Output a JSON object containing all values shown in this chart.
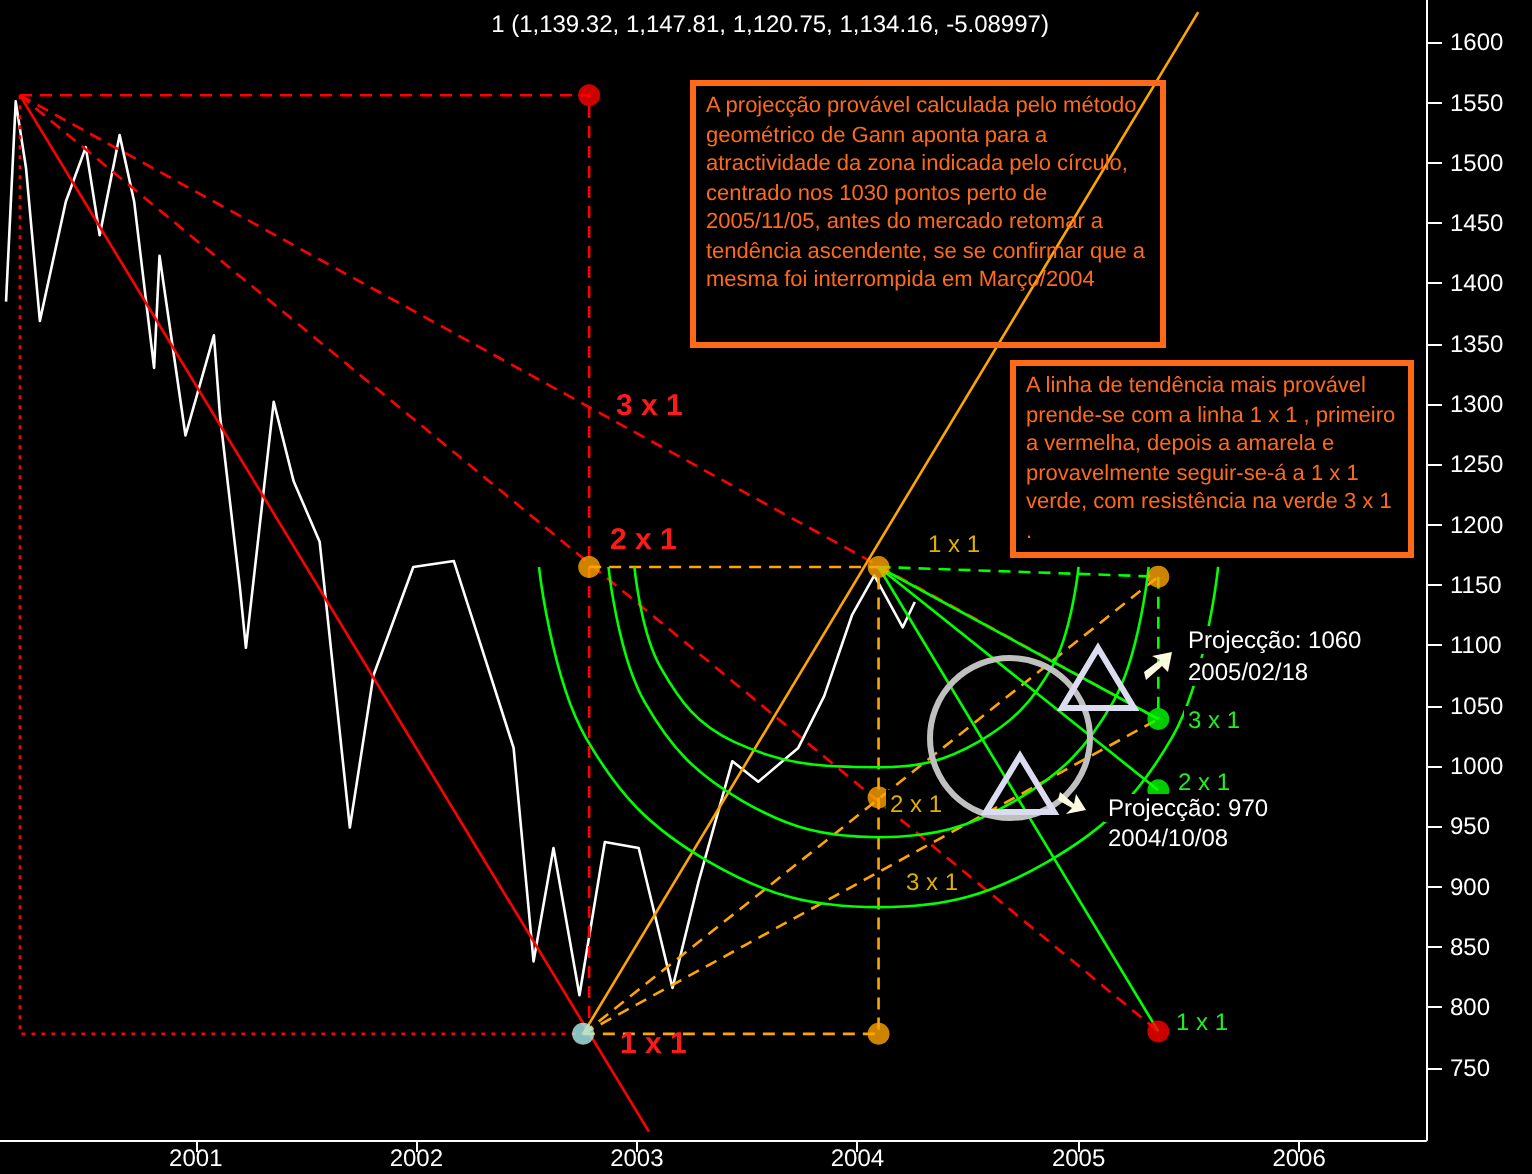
{
  "chart_data": {
    "type": "line",
    "title": "1 (1,139.32, 1,147.81, 1,120.75, 1,134.16, -5.08997)",
    "xlim": [
      "2000-02-12",
      "2006-07-30"
    ],
    "xticks": [
      "2001",
      "2002",
      "2003",
      "2004",
      "2005",
      "2006"
    ],
    "ylim": [
      690,
      1635
    ],
    "yticks": [
      750,
      800,
      850,
      900,
      950,
      1000,
      1050,
      1100,
      1150,
      1200,
      1250,
      1300,
      1350,
      1400,
      1450,
      1500,
      1550,
      1600
    ],
    "grid": false,
    "marker": "none",
    "line_style": "solid",
    "series": [
      {
        "color": "#ffffff",
        "x": [
          "2000-02-22",
          "2000-03-09",
          "2000-03-26",
          "2000-04-18",
          "2000-05-31",
          "2000-07-03",
          "2000-07-26",
          "2000-08-28",
          "2000-09-21",
          "2000-10-24",
          "2000-11-02",
          "2000-12-15",
          "2001-01-31",
          "2001-02-10",
          "2001-03-15",
          "2001-03-25",
          "2001-05-10",
          "2001-06-12",
          "2001-07-25",
          "2001-09-13",
          "2001-10-22",
          "2001-12-27",
          "2002-03-04",
          "2002-04-16",
          "2002-06-11",
          "2002-07-14",
          "2002-08-16",
          "2002-09-28",
          "2002-11-09",
          "2003-01-04",
          "2003-03-01",
          "2003-04-13",
          "2003-06-08",
          "2003-07-21",
          "2003-09-25",
          "2003-11-07",
          "2003-12-23",
          "2004-01-29",
          "2004-03-16",
          "2004-04-05"
        ],
        "values": [
          1385,
          1551,
          1496,
          1369,
          1468,
          1513,
          1440,
          1523,
          1468,
          1330,
          1423,
          1274,
          1357,
          1291,
          1148,
          1098,
          1302,
          1236,
          1186,
          949,
          1075,
          1165,
          1170,
          1103,
          1015,
          838,
          932,
          810,
          937,
          932,
          816,
          904,
          1004,
          987,
          1015,
          1058,
          1125,
          1158,
          1115,
          1136
        ]
      },
      {
        "color": "#ff0000",
        "x": [
          "2000-03-16",
          "2003-01-21"
        ],
        "values": [
          1556,
          697
        ]
      },
      {
        "type": "line",
        "color": "#ff0000",
        "line_style": "dashed",
        "x": [
          "2000-03-16",
          "2002-10-14",
          "2002-10-14"
        ],
        "values": [
          1556,
          1556,
          778
        ]
      },
      {
        "type": "line",
        "color": "#ff0000",
        "line_style": "dotted",
        "x": [
          "2000-03-16",
          "2000-03-16",
          "2002-10-04"
        ],
        "values": [
          1556,
          778,
          778
        ]
      },
      {
        "type": "line",
        "color": "#ff0000",
        "line_style": "dashed",
        "x": [
          "2000-03-16",
          "2005-05-13"
        ],
        "values": [
          1556,
          780
        ]
      },
      {
        "type": "line",
        "color": "#ff0000",
        "line_style": "dashed",
        "x": [
          "2000-03-16",
          "2005-05-13"
        ],
        "values": [
          1556,
          1039
        ]
      },
      {
        "color": "#ffa500",
        "x": [
          "2002-10-04",
          "2005-07-18"
        ],
        "values": [
          778,
          1625
        ]
      },
      {
        "type": "line",
        "color": "#ffa500",
        "line_style": "dashed",
        "x": [
          "2002-10-14",
          "2004-02-05",
          "2004-02-05",
          "2002-10-04"
        ],
        "values": [
          1165,
          1165,
          778,
          778
        ]
      },
      {
        "type": "line",
        "color": "#ffa500",
        "line_style": "dashed",
        "x": [
          "2002-10-04",
          "2005-05-13"
        ],
        "values": [
          778,
          1157
        ]
      },
      {
        "type": "line",
        "color": "#ffa500",
        "line_style": "dashed",
        "x": [
          "2002-10-04",
          "2005-05-13"
        ],
        "values": [
          778,
          1039
        ]
      },
      {
        "type": "line",
        "color": "#00ff00",
        "line_style": "dashed",
        "x": [
          "2004-02-05",
          "2005-05-13",
          "2005-05-13"
        ],
        "values": [
          1165,
          1157,
          1039
        ]
      },
      {
        "type": "line",
        "color": "#00ff00",
        "x": [
          "2004-02-05",
          "2005-05-13"
        ],
        "values": [
          1165,
          780
        ]
      },
      {
        "type": "line",
        "color": "#00ff00",
        "x": [
          "2004-02-05",
          "2005-05-13"
        ],
        "values": [
          1165,
          1039
        ]
      },
      {
        "type": "line",
        "color": "#00ff00",
        "x": [
          "2004-02-05",
          "2005-05-13"
        ],
        "values": [
          1165,
          980
        ]
      },
      {
        "type": "line",
        "color": "#00ff00",
        "x": [
          "2002-07-23",
          "2002-10-08",
          "2003-04-29",
          "2004-02-05",
          "2004-11-12",
          "2005-06-05",
          "2005-08-20"
        ],
        "values": [
          1165,
          1024,
          921,
          883,
          921,
          1024,
          1165
        ]
      },
      {
        "type": "line",
        "color": "#00ff00",
        "x": [
          "2002-11-15",
          "2003-01-14",
          "2003-06-25",
          "2004-02-05",
          "2004-09-17",
          "2005-02-27",
          "2005-04-27"
        ],
        "values": [
          1165,
          1053,
          971,
          941,
          971,
          1053,
          1165
        ]
      },
      {
        "type": "line",
        "color": "#00ff00",
        "x": [
          "2002-12-28",
          "2003-02-09",
          "2003-06-11",
          "2004-02-05",
          "2004-07-19",
          "2004-11-18",
          "2005-01-01"
        ],
        "values": [
          1165,
          1082,
          1020,
          999,
          1020,
          1082,
          1165
        ]
      },
      {
        "type": "scatter",
        "marker": "circle",
        "x": [
          "2002-10-14",
          "2005-05-13",
          "2002-10-14",
          "2004-02-05",
          "2004-02-05",
          "2004-02-05",
          "2005-05-13",
          "2002-10-04",
          "2005-05-13",
          "2005-05-13"
        ],
        "values": [
          1556,
          780,
          1165,
          1165,
          974,
          778,
          1157,
          778,
          1039,
          980
        ],
        "colors": [
          "#ff0000",
          "#ff0000",
          "#ffa500",
          "#ffa500",
          "#ffa500",
          "#ffa500",
          "#ffa500",
          "#aaf0f0",
          "#00ff00",
          "#00ff00"
        ]
      }
    ],
    "annotations": [
      "A projecção provável calculada pelo método geométrico de Gann aponta para a atractividade da zona indicada pelo círculo, centrado nos 1030 pontos perto de 2005/11/05, antes do mercado retomar a tendência ascendente, se se confirmar que a mesma foi interrompida em Março/2004",
      "A linha de tendência mais provável prende-se com a linha 1 x 1 , primeiro a vermelha, depois a amarela e provavelmente seguir-se-á a 1 x 1 verde, com resistência na verde 3 x 1 .",
      "3 x 1",
      "2 x 1",
      "1 x 1",
      "1 x 1",
      "2 x 1",
      "3 x 1",
      "3 x 1",
      "2 x 1",
      "1 x 1",
      "Projecção: 1060",
      "2005/02/18",
      "Projecção: 970",
      "2004/10/08"
    ]
  }
}
